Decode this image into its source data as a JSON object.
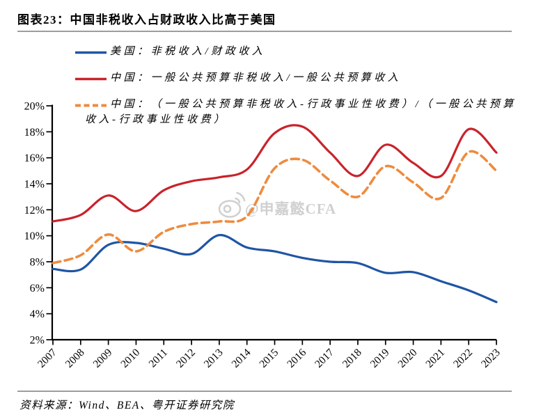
{
  "figure": {
    "title": "图表23：中国非税收入占财政收入比高于美国",
    "source": "资料来源：Wind、BEA、粤开证券研究院",
    "watermark_text": "@申嘉懿CFA",
    "watermark_icon": "weibo-icon"
  },
  "colors": {
    "us_line": "#1F55A4",
    "china_line": "#C9232B",
    "china_adjusted_line": "#EE8B3E",
    "axis": "#000000",
    "divider": "#9D9D9D",
    "watermark": "#CCCCCC"
  },
  "legend": [
    {
      "id": "us-series",
      "color": "#1F55A4",
      "dash": false,
      "lines": [
        "美国：非税收入/财政收入"
      ]
    },
    {
      "id": "china-series",
      "color": "#C9232B",
      "dash": false,
      "lines": [
        "中国：一般公共预算非税收入/一般公共预算收入"
      ]
    },
    {
      "id": "china-adjusted-series",
      "color": "#EE8B3E",
      "dash": true,
      "lines": [
        "中国：（一般公共预算非税收入-行政事业性收费）/（一般公共预算",
        "收入-行政事业性收费）"
      ]
    }
  ],
  "chart_data": {
    "type": "line",
    "title": "图表23：中国非税收入占财政收入比高于美国",
    "x": [
      2007,
      2008,
      2009,
      2010,
      2011,
      2012,
      2013,
      2014,
      2015,
      2016,
      2017,
      2018,
      2019,
      2020,
      2021,
      2022,
      2023
    ],
    "x_tick_labels": [
      "2007",
      "2008",
      "2009",
      "2010",
      "2011",
      "2012",
      "2013",
      "2014",
      "2015",
      "2016",
      "2017",
      "2018",
      "2019",
      "2020",
      "2021",
      "2022",
      "2023"
    ],
    "y_tick_labels": [
      "2%",
      "4%",
      "6%",
      "8%",
      "10%",
      "12%",
      "14%",
      "16%",
      "18%",
      "20%"
    ],
    "ylim": [
      2,
      20
    ],
    "ytick_step": 2,
    "grid": false,
    "legend_position": "top-left",
    "series": [
      {
        "name": "美国：非税收入/财政收入",
        "color": "#1F55A4",
        "style": "solid",
        "values": [
          7.45,
          7.4,
          9.3,
          9.45,
          9.0,
          8.6,
          10.05,
          9.1,
          8.8,
          8.3,
          8.0,
          7.9,
          7.15,
          7.2,
          6.5,
          5.8,
          4.9
        ]
      },
      {
        "name": "中国：一般公共预算非税收入/一般公共预算收入",
        "color": "#C9232B",
        "style": "solid",
        "values": [
          11.1,
          11.6,
          13.1,
          11.9,
          13.5,
          14.2,
          14.5,
          15.1,
          17.9,
          18.4,
          16.4,
          14.6,
          17.0,
          15.6,
          14.6,
          18.2,
          16.4
        ]
      },
      {
        "name": "中国：（一般公共预算非税收入-行政事业性收费）/（一般公共预算收入-行政事业性收费）",
        "color": "#EE8B3E",
        "style": "dashed",
        "values": [
          7.9,
          8.5,
          10.1,
          8.8,
          10.3,
          10.9,
          11.1,
          11.5,
          15.2,
          15.85,
          14.25,
          13.0,
          15.35,
          14.1,
          12.9,
          16.45,
          15.0
        ]
      }
    ]
  }
}
